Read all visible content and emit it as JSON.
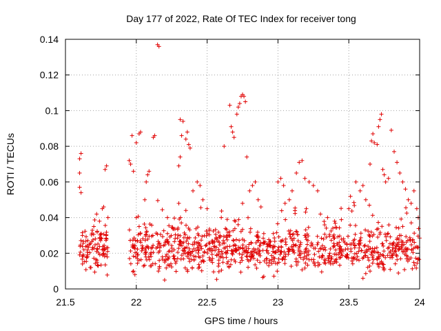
{
  "chart_data": {
    "type": "scatter",
    "title": "Day 177 of 2022, Rate Of TEC Index for receiver tong",
    "xlabel": "GPS time / hours",
    "ylabel": "ROTI / TECUs",
    "xlim": [
      21.5,
      24
    ],
    "ylim": [
      0,
      0.14
    ],
    "xticks": [
      21.5,
      22,
      22.5,
      23,
      23.5,
      24
    ],
    "xtick_labels": [
      "21.5",
      "22",
      "22.5",
      "23",
      "23.5",
      "24"
    ],
    "yticks": [
      0,
      0.02,
      0.04,
      0.06,
      0.08,
      0.1,
      0.12,
      0.14
    ],
    "ytick_labels": [
      "0",
      "0.02",
      "0.04",
      "0.06",
      "0.08",
      "0.1",
      "0.12",
      "0.14"
    ],
    "grid": true,
    "marker": "+",
    "color": "#e00000",
    "series": [
      {
        "name": "ROTI",
        "points": [
          [
            21.6,
            0.073
          ],
          [
            21.61,
            0.076
          ],
          [
            21.6,
            0.065
          ],
          [
            21.6,
            0.057
          ],
          [
            21.61,
            0.054
          ],
          [
            21.62,
            0.03
          ],
          [
            21.63,
            0.022
          ],
          [
            21.65,
            0.018
          ],
          [
            21.67,
            0.025
          ],
          [
            21.7,
            0.035
          ],
          [
            21.72,
            0.042
          ],
          [
            21.74,
            0.038
          ],
          [
            21.75,
            0.031
          ],
          [
            21.76,
            0.045
          ],
          [
            21.77,
            0.046
          ],
          [
            21.78,
            0.067
          ],
          [
            21.79,
            0.069
          ],
          [
            21.62,
            0.014
          ],
          [
            21.68,
            0.012
          ],
          [
            21.73,
            0.013
          ],
          [
            21.77,
            0.02
          ],
          [
            21.8,
            0.04
          ],
          [
            21.79,
            0.028
          ],
          [
            21.95,
            0.072
          ],
          [
            21.96,
            0.07
          ],
          [
            21.98,
            0.066
          ],
          [
            21.97,
            0.086
          ],
          [
            22.0,
            0.082
          ],
          [
            22.02,
            0.087
          ],
          [
            22.03,
            0.088
          ],
          [
            22.06,
            0.05
          ],
          [
            22.07,
            0.06
          ],
          [
            22.08,
            0.064
          ],
          [
            22.09,
            0.066
          ],
          [
            22.12,
            0.085
          ],
          [
            22.13,
            0.086
          ],
          [
            22.15,
            0.137
          ],
          [
            22.16,
            0.136
          ],
          [
            22.0,
            0.04
          ],
          [
            22.02,
            0.035
          ],
          [
            21.98,
            0.01
          ],
          [
            21.99,
            0.008
          ],
          [
            22.2,
            0.005
          ],
          [
            22.22,
            0.04
          ],
          [
            22.3,
            0.069
          ],
          [
            22.31,
            0.074
          ],
          [
            22.31,
            0.095
          ],
          [
            22.33,
            0.094
          ],
          [
            22.32,
            0.086
          ],
          [
            22.35,
            0.084
          ],
          [
            22.37,
            0.081
          ],
          [
            22.38,
            0.079
          ],
          [
            22.36,
            0.088
          ],
          [
            22.4,
            0.055
          ],
          [
            22.43,
            0.06
          ],
          [
            22.45,
            0.058
          ],
          [
            22.47,
            0.05
          ],
          [
            22.5,
            0.045
          ],
          [
            22.3,
            0.048
          ],
          [
            22.35,
            0.044
          ],
          [
            22.62,
            0.08
          ],
          [
            22.66,
            0.103
          ],
          [
            22.67,
            0.091
          ],
          [
            22.68,
            0.088
          ],
          [
            22.69,
            0.085
          ],
          [
            22.71,
            0.098
          ],
          [
            22.72,
            0.102
          ],
          [
            22.73,
            0.104
          ],
          [
            22.74,
            0.108
          ],
          [
            22.75,
            0.109
          ],
          [
            22.76,
            0.108
          ],
          [
            22.77,
            0.105
          ],
          [
            22.78,
            0.074
          ],
          [
            22.8,
            0.055
          ],
          [
            22.82,
            0.058
          ],
          [
            22.84,
            0.06
          ],
          [
            22.86,
            0.05
          ],
          [
            22.88,
            0.046
          ],
          [
            22.75,
            0.048
          ],
          [
            22.9,
            0.007
          ],
          [
            22.6,
            0.04
          ],
          [
            22.7,
            0.038
          ],
          [
            23.0,
            0.06
          ],
          [
            23.02,
            0.062
          ],
          [
            23.04,
            0.058
          ],
          [
            23.1,
            0.055
          ],
          [
            23.13,
            0.065
          ],
          [
            23.15,
            0.071
          ],
          [
            23.17,
            0.072
          ],
          [
            23.19,
            0.062
          ],
          [
            23.22,
            0.06
          ],
          [
            23.25,
            0.058
          ],
          [
            23.28,
            0.055
          ],
          [
            23.05,
            0.048
          ],
          [
            23.08,
            0.05
          ],
          [
            23.2,
            0.045
          ],
          [
            23.3,
            0.042
          ],
          [
            23.35,
            0.04
          ],
          [
            23.4,
            0.038
          ],
          [
            23.5,
            0.045
          ],
          [
            23.55,
            0.06
          ],
          [
            23.58,
            0.055
          ],
          [
            23.6,
            0.058
          ],
          [
            23.62,
            0.05
          ],
          [
            23.65,
            0.07
          ],
          [
            23.66,
            0.083
          ],
          [
            23.67,
            0.087
          ],
          [
            23.68,
            0.082
          ],
          [
            23.7,
            0.081
          ],
          [
            23.71,
            0.091
          ],
          [
            23.72,
            0.095
          ],
          [
            23.73,
            0.098
          ],
          [
            23.74,
            0.067
          ],
          [
            23.75,
            0.064
          ],
          [
            23.76,
            0.06
          ],
          [
            23.78,
            0.062
          ],
          [
            23.8,
            0.089
          ],
          [
            23.82,
            0.077
          ],
          [
            23.84,
            0.071
          ],
          [
            23.86,
            0.065
          ],
          [
            23.88,
            0.06
          ],
          [
            23.9,
            0.056
          ],
          [
            23.92,
            0.05
          ],
          [
            23.94,
            0.048
          ],
          [
            23.96,
            0.055
          ],
          [
            23.98,
            0.045
          ],
          [
            23.99,
            0.04
          ],
          [
            23.6,
            0.006
          ],
          [
            23.65,
            0.01
          ]
        ],
        "dense_band": {
          "description": "continuous scattered ROTI samples",
          "x_ranges": [
            [
              21.6,
              21.8
            ],
            [
              21.95,
              24.0
            ]
          ],
          "typical_range": [
            0.005,
            0.04
          ],
          "center": 0.021
        }
      }
    ]
  }
}
